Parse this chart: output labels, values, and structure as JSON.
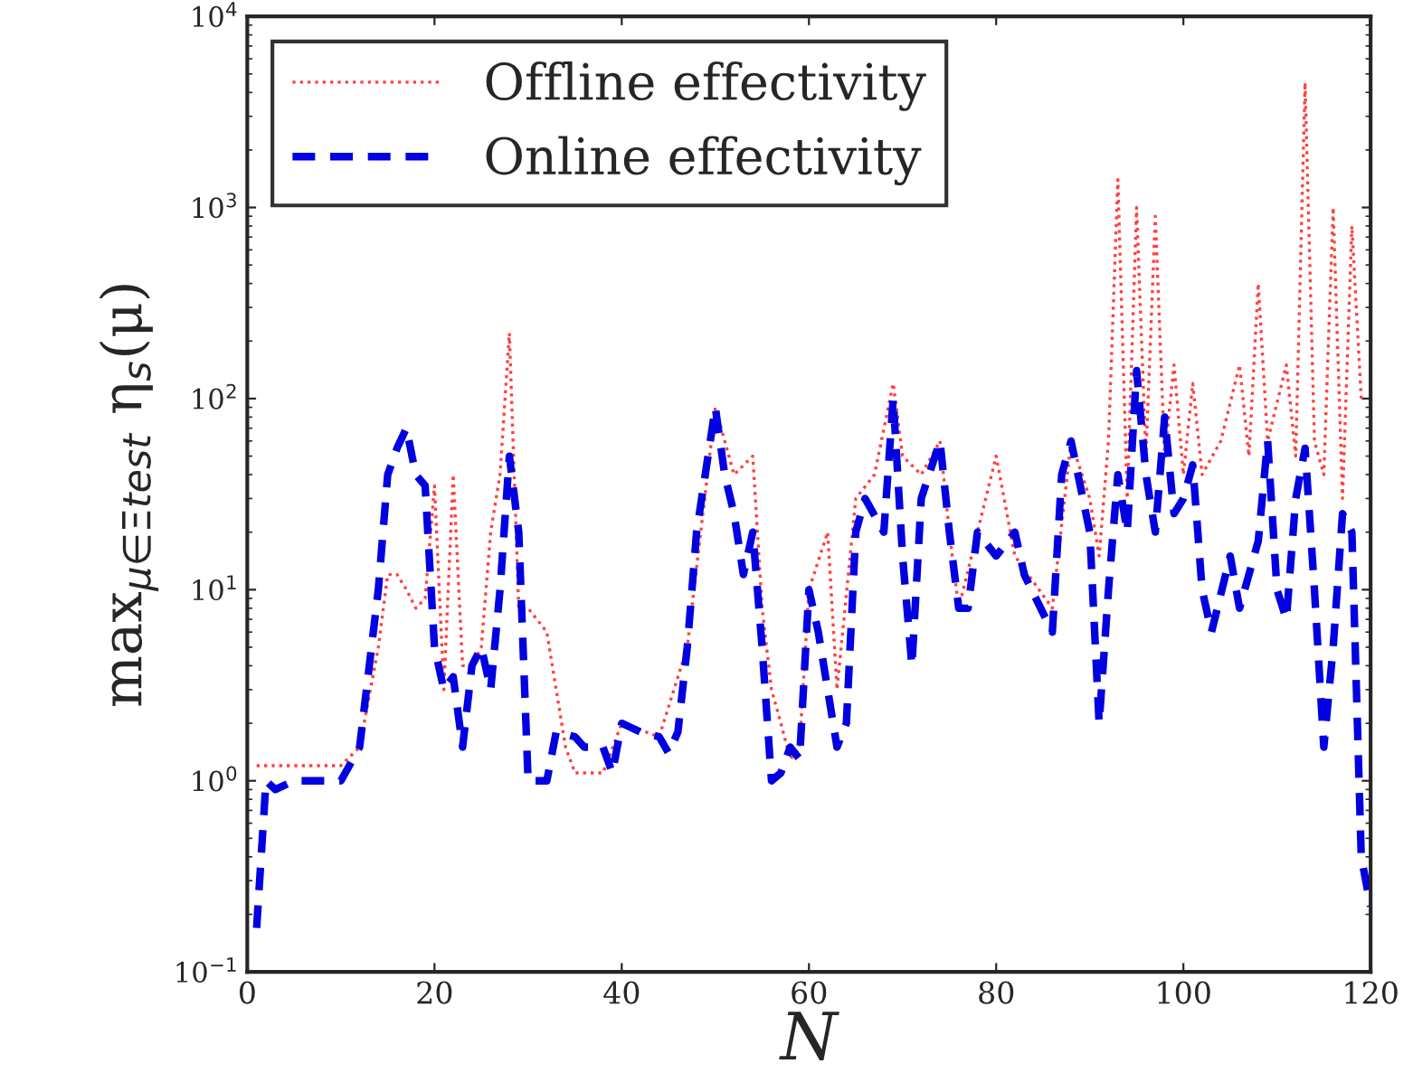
{
  "chart_data": {
    "type": "line",
    "xlabel": "N",
    "ylabel": "max$_{μ∈Ξtest}$ η$_{s}$(μ)",
    "xlim": [
      0,
      120
    ],
    "xticks": [
      0,
      20,
      40,
      60,
      80,
      100,
      120
    ],
    "ylim": [
      0.1,
      10000
    ],
    "log": true,
    "yticks": [
      {
        "value": 0.1,
        "label": "10$^{−1}$"
      },
      {
        "value": 1,
        "label": "10$^{0}$"
      },
      {
        "value": 10,
        "label": "10$^{1}$"
      },
      {
        "value": 100,
        "label": "10$^{2}$"
      },
      {
        "value": 1000,
        "label": "10$^{3}$"
      },
      {
        "value": 10000,
        "label": "10$^{4}$"
      }
    ],
    "grid": false,
    "legend": "top left",
    "series": [
      {
        "name": "Offline effectivity",
        "color": "#ff4040",
        "line_style": "dotted",
        "x": [
          1,
          2,
          10,
          12,
          14,
          15,
          16,
          17,
          18,
          19,
          20,
          21,
          22,
          23,
          24,
          25,
          26,
          27,
          28,
          29,
          30,
          32,
          33,
          34,
          35,
          38,
          40,
          44,
          47,
          50,
          52,
          54,
          55,
          56,
          57,
          58,
          59,
          60,
          62,
          63,
          65,
          67,
          69,
          70,
          72,
          74,
          75,
          76,
          78,
          80,
          82,
          86,
          88,
          90,
          91,
          92,
          93,
          94,
          95,
          96,
          97,
          98,
          99,
          100,
          101,
          102,
          104,
          106,
          107,
          108,
          109,
          111,
          112,
          113,
          114,
          115,
          116,
          117,
          118,
          119
        ],
        "values": [
          1.2,
          1.2,
          1.2,
          1.5,
          5,
          12,
          12,
          10,
          8,
          9,
          35,
          3,
          40,
          4,
          4,
          5,
          20,
          40,
          220,
          8,
          8,
          6,
          3,
          1.5,
          1.1,
          1.1,
          2,
          1.7,
          5,
          90,
          40,
          50,
          8,
          3,
          2,
          1.3,
          1.5,
          10,
          20,
          3,
          30,
          40,
          120,
          50,
          40,
          60,
          20,
          8,
          20,
          50,
          15,
          8,
          60,
          30,
          15,
          60,
          1400,
          30,
          1000,
          50,
          900,
          50,
          150,
          40,
          120,
          40,
          60,
          150,
          50,
          400,
          60,
          150,
          50,
          4500,
          60,
          40,
          1000,
          30,
          800,
          100
        ]
      },
      {
        "name": "Online effectivity",
        "color": "#0000e0",
        "line_style": "dashed",
        "x": [
          1,
          2,
          3,
          5,
          10,
          12,
          14,
          15,
          16,
          17,
          18,
          19,
          20,
          21,
          22,
          23,
          24,
          25,
          26,
          27,
          28,
          29,
          30,
          32,
          33,
          35,
          36,
          38,
          39,
          40,
          42,
          44,
          45,
          46,
          47,
          48,
          50,
          51,
          52,
          53,
          54,
          55,
          56,
          57,
          58,
          59,
          60,
          61,
          62,
          63,
          64,
          65,
          66,
          68,
          69,
          70,
          71,
          72,
          74,
          75,
          76,
          77,
          78,
          80,
          82,
          83,
          86,
          87,
          88,
          90,
          91,
          92,
          93,
          94,
          95,
          96,
          97,
          98,
          99,
          100,
          101,
          102,
          103,
          105,
          106,
          108,
          109,
          110,
          111,
          112,
          113,
          114,
          115,
          116,
          117,
          118,
          119,
          120
        ],
        "values": [
          0.17,
          1.0,
          0.9,
          1.0,
          1.0,
          1.5,
          10,
          40,
          55,
          70,
          40,
          35,
          5,
          3,
          3.5,
          1.5,
          4,
          5,
          3,
          10,
          50,
          20,
          1.0,
          1.0,
          1.8,
          1.7,
          1.5,
          1.5,
          1.1,
          2,
          1.8,
          1.7,
          1.4,
          1.8,
          5,
          20,
          90,
          40,
          25,
          12,
          20,
          5,
          1.0,
          1.1,
          1.5,
          1.3,
          10,
          6,
          3,
          1.5,
          2,
          20,
          30,
          20,
          100,
          15,
          4,
          30,
          60,
          20,
          8,
          8,
          20,
          15,
          20,
          12,
          6,
          40,
          60,
          20,
          2,
          10,
          40,
          20,
          140,
          40,
          20,
          80,
          25,
          30,
          45,
          10,
          6,
          15,
          8,
          18,
          60,
          10,
          7,
          30,
          55,
          10,
          1.5,
          5,
          25,
          20,
          0.4,
          0.22
        ]
      }
    ]
  }
}
